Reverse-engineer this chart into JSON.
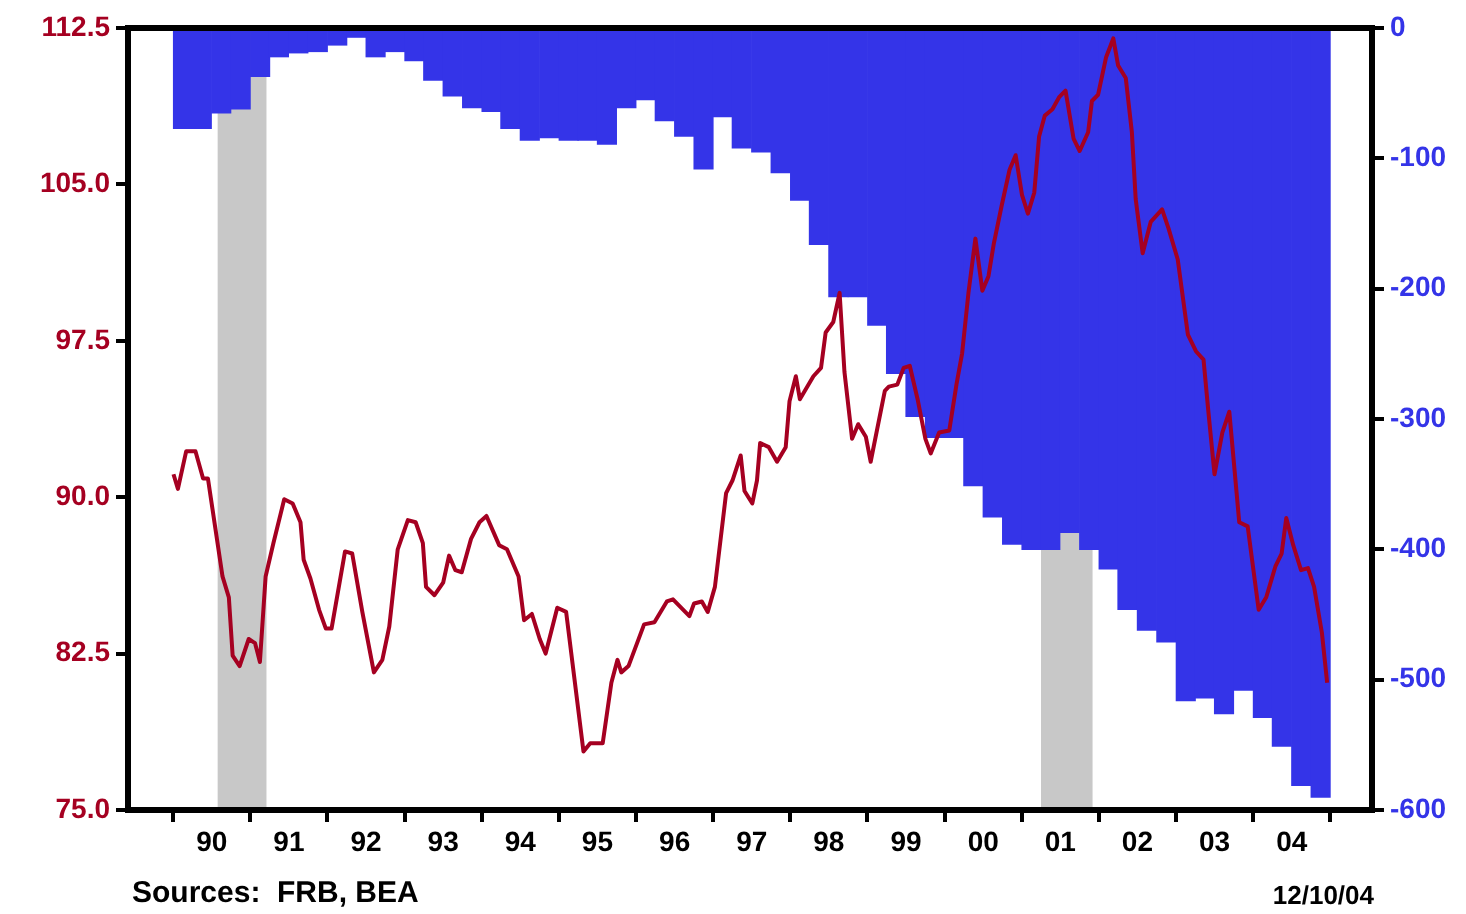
{
  "chart_data": {
    "type": "bar",
    "series": [
      {
        "axis": "y2",
        "color": "#3434e8",
        "x": [
          "1990-02-15",
          "1990-05-15",
          "1990-08-15",
          "1990-11-15",
          "1991-02-15",
          "1991-05-15",
          "1991-08-15",
          "1991-11-15",
          "1992-02-15",
          "1992-05-15",
          "1992-08-15",
          "1992-11-15",
          "1993-02-15",
          "1993-05-15",
          "1993-08-15",
          "1993-11-15",
          "1994-02-15",
          "1994-05-15",
          "1994-08-15",
          "1994-11-15",
          "1995-02-15",
          "1995-05-15",
          "1995-08-15",
          "1995-11-15",
          "1996-02-15",
          "1996-05-15",
          "1996-08-15",
          "1996-11-15",
          "1997-02-15",
          "1997-05-15",
          "1997-08-15",
          "1997-11-15",
          "1998-02-15",
          "1998-05-15",
          "1998-08-15",
          "1998-11-15",
          "1999-02-15",
          "1999-05-15",
          "1999-08-15",
          "1999-11-15",
          "2000-02-15",
          "2000-05-15",
          "2000-08-15",
          "2000-11-15",
          "2001-02-15",
          "2001-05-15",
          "2001-08-15",
          "2001-11-15",
          "2002-02-15",
          "2002-05-15",
          "2002-08-15",
          "2002-11-15",
          "2003-02-15",
          "2003-05-15",
          "2003-08-15",
          "2003-11-15",
          "2004-02-15",
          "2004-05-15",
          "2004-08-15",
          "2004-11-15"
        ],
        "values": [
          -77,
          -77,
          -65,
          -62,
          -37,
          -22,
          -19,
          -18,
          -13,
          -7,
          -22,
          -18,
          -25,
          -40,
          -52,
          -61,
          -64,
          -77,
          -86,
          -84,
          -86,
          -86,
          -89,
          -61,
          -55,
          -71,
          -83,
          -108,
          -68,
          -92,
          -95,
          -111,
          -132,
          -166,
          -206,
          -206,
          -228,
          -265,
          -298,
          -314,
          -314,
          -351,
          -375,
          -396,
          -400,
          -400,
          -387,
          -400,
          -415,
          -446,
          -462,
          -471,
          -516,
          -514,
          -526,
          -508,
          -529,
          -551,
          -581,
          -590
        ]
      },
      {
        "type": "line",
        "color": "#a50021",
        "x": [
          "1990-01-01",
          "1990-01-22",
          "1990-03-02",
          "1990-04-15",
          "1990-05-21",
          "1990-06-13",
          "1990-08-21",
          "1990-09-20",
          "1990-10-08",
          "1990-11-10",
          "1990-12-23",
          "1991-01-22",
          "1991-02-14",
          "1991-03-13",
          "1991-04-19",
          "1991-06-09",
          "1991-07-19",
          "1991-08-25",
          "1991-09-09",
          "1991-10-11",
          "1991-11-21",
          "1991-12-23",
          "1992-01-19",
          "1992-03-23",
          "1992-04-26",
          "1992-06-13",
          "1992-08-07",
          "1992-09-16",
          "1992-10-19",
          "1992-11-28",
          "1993-01-15",
          "1993-02-21",
          "1993-03-27",
          "1993-04-11",
          "1993-05-21",
          "1993-07-01",
          "1993-07-29",
          "1993-08-28",
          "1993-09-27",
          "1993-11-10",
          "1993-12-20",
          "1994-01-22",
          "1994-03-23",
          "1994-04-29",
          "1994-06-23",
          "1994-07-19",
          "1994-08-25",
          "1994-10-01",
          "1994-10-29",
          "1994-12-23",
          "1995-02-03",
          "1995-04-26",
          "1995-05-28",
          "1995-07-26",
          "1995-09-05",
          "1995-10-04",
          "1995-10-22",
          "1995-11-25",
          "1996-02-07",
          "1996-03-27",
          "1996-05-25",
          "1996-06-23",
          "1996-09-09",
          "1996-10-01",
          "1996-11-07",
          "1996-12-05",
          "1997-01-08",
          "1997-03-02",
          "1997-04-01",
          "1997-05-10",
          "1997-05-28",
          "1997-07-04",
          "1997-07-26",
          "1997-08-10",
          "1997-09-20",
          "1997-10-29",
          "1997-12-09",
          "1997-12-27",
          "1998-01-26",
          "1998-02-14",
          "1998-04-19",
          "1998-05-25",
          "1998-06-16",
          "1998-07-22",
          "1998-08-21",
          "1998-09-13",
          "1998-10-19",
          "1998-11-17",
          "1998-12-23",
          "1999-01-15",
          "1999-03-23",
          "1999-04-11",
          "1999-05-21",
          "1999-06-20",
          "1999-07-19",
          "1999-08-25",
          "1999-10-01",
          "1999-10-26",
          "1999-12-05",
          "2000-01-22",
          "2000-02-25",
          "2000-03-23",
          "2000-04-22",
          "2000-05-25",
          "2000-06-27",
          "2000-07-26",
          "2000-08-21",
          "2000-09-27",
          "2000-11-03",
          "2000-12-02",
          "2001-01-01",
          "2001-01-29",
          "2001-02-28",
          "2001-03-23",
          "2001-04-19",
          "2001-05-25",
          "2001-06-27",
          "2001-07-26",
          "2001-09-02",
          "2001-10-01",
          "2001-11-10",
          "2001-11-28",
          "2001-12-27",
          "2002-02-03",
          "2002-03-09",
          "2002-04-01",
          "2002-05-07",
          "2002-06-05",
          "2002-06-23",
          "2002-07-26",
          "2002-09-02",
          "2002-10-26",
          "2002-11-25",
          "2003-01-08",
          "2003-02-25",
          "2003-04-04",
          "2003-05-10",
          "2003-06-02",
          "2003-07-01",
          "2003-08-07",
          "2003-09-09",
          "2003-10-26",
          "2003-12-05",
          "2004-01-26",
          "2004-03-02",
          "2004-04-15",
          "2004-05-14",
          "2004-06-05",
          "2004-07-08",
          "2004-08-14",
          "2004-09-16",
          "2004-10-15",
          "2004-11-21",
          "2004-12-16"
        ],
        "values": [
          91.1,
          90.4,
          92.2,
          92.2,
          90.9,
          90.9,
          86.2,
          85.2,
          82.4,
          81.9,
          83.2,
          83.0,
          82.1,
          86.2,
          87.8,
          89.9,
          89.7,
          88.8,
          87.0,
          86.1,
          84.6,
          83.7,
          83.7,
          87.4,
          87.3,
          84.5,
          81.6,
          82.2,
          83.8,
          87.5,
          88.9,
          88.8,
          87.8,
          85.7,
          85.3,
          85.9,
          87.2,
          86.5,
          86.4,
          88.0,
          88.8,
          89.1,
          87.7,
          87.5,
          86.2,
          84.1,
          84.4,
          83.2,
          82.5,
          84.7,
          84.5,
          77.8,
          78.2,
          78.2,
          81.1,
          82.2,
          81.6,
          81.9,
          83.9,
          84.0,
          85.0,
          85.1,
          84.3,
          84.9,
          85.0,
          84.5,
          85.7,
          90.2,
          90.8,
          92.0,
          90.3,
          89.7,
          90.8,
          92.6,
          92.4,
          91.7,
          92.4,
          94.6,
          95.8,
          94.7,
          95.8,
          96.2,
          97.9,
          98.4,
          99.8,
          96.0,
          92.8,
          93.5,
          92.9,
          91.7,
          95.1,
          95.3,
          95.4,
          96.2,
          96.3,
          94.7,
          92.8,
          92.1,
          93.1,
          93.2,
          95.4,
          96.9,
          99.8,
          102.4,
          99.9,
          100.6,
          102.2,
          104.0,
          105.7,
          106.4,
          104.5,
          103.6,
          104.6,
          107.3,
          108.3,
          108.6,
          109.2,
          109.5,
          107.2,
          106.6,
          107.5,
          109.0,
          109.3,
          111.1,
          112.0,
          110.7,
          110.1,
          107.5,
          104.3,
          101.7,
          103.2,
          103.8,
          102.9,
          101.4,
          97.8,
          97.0,
          96.6,
          94.1,
          91.1,
          93.1,
          94.1,
          88.8,
          88.6,
          84.6,
          85.2,
          86.7,
          87.3,
          89.0,
          87.7,
          86.5,
          86.6,
          85.7,
          83.5,
          81.1
        ]
      }
    ],
    "xlim": [
      "1989-12-13",
      "2005-01-01"
    ],
    "xticks": [
      {
        "value": "1990-07-01",
        "label": "90"
      },
      {
        "value": "1991-07-01",
        "label": "91"
      },
      {
        "value": "1992-07-01",
        "label": "92"
      },
      {
        "value": "1993-07-01",
        "label": "93"
      },
      {
        "value": "1994-07-01",
        "label": "94"
      },
      {
        "value": "1995-07-01",
        "label": "95"
      },
      {
        "value": "1996-07-01",
        "label": "96"
      },
      {
        "value": "1997-07-01",
        "label": "97"
      },
      {
        "value": "1998-07-01",
        "label": "98"
      },
      {
        "value": "1999-07-01",
        "label": "99"
      },
      {
        "value": "2000-07-01",
        "label": "00"
      },
      {
        "value": "2001-07-01",
        "label": "01"
      },
      {
        "value": "2002-07-01",
        "label": "02"
      },
      {
        "value": "2003-07-01",
        "label": "03"
      },
      {
        "value": "2004-07-01",
        "label": "04"
      }
    ],
    "ylim": [
      75,
      112.5
    ],
    "yticks": [
      {
        "value": 75,
        "label": "75.0"
      },
      {
        "value": 82.5,
        "label": "82.5"
      },
      {
        "value": 90,
        "label": "90.0"
      },
      {
        "value": 97.5,
        "label": "97.5"
      },
      {
        "value": 105,
        "label": "105.0"
      },
      {
        "value": 112.5,
        "label": "112.5"
      }
    ],
    "y2lim": [
      -600,
      0
    ],
    "y2ticks": [
      -600,
      -500,
      -400,
      -300,
      -200,
      -100,
      0
    ],
    "bands": [
      {
        "axis": "x",
        "from": "1990-07-29",
        "to": "1991-03-17",
        "color": "#c8c8c8"
      },
      {
        "axis": "x",
        "from": "2001-04-01",
        "to": "2001-12-01",
        "color": "#c8c8c8"
      }
    ],
    "marker": "none",
    "annotations": [
      "Sources:  FRB, BEA",
      "12/10/04"
    ]
  }
}
